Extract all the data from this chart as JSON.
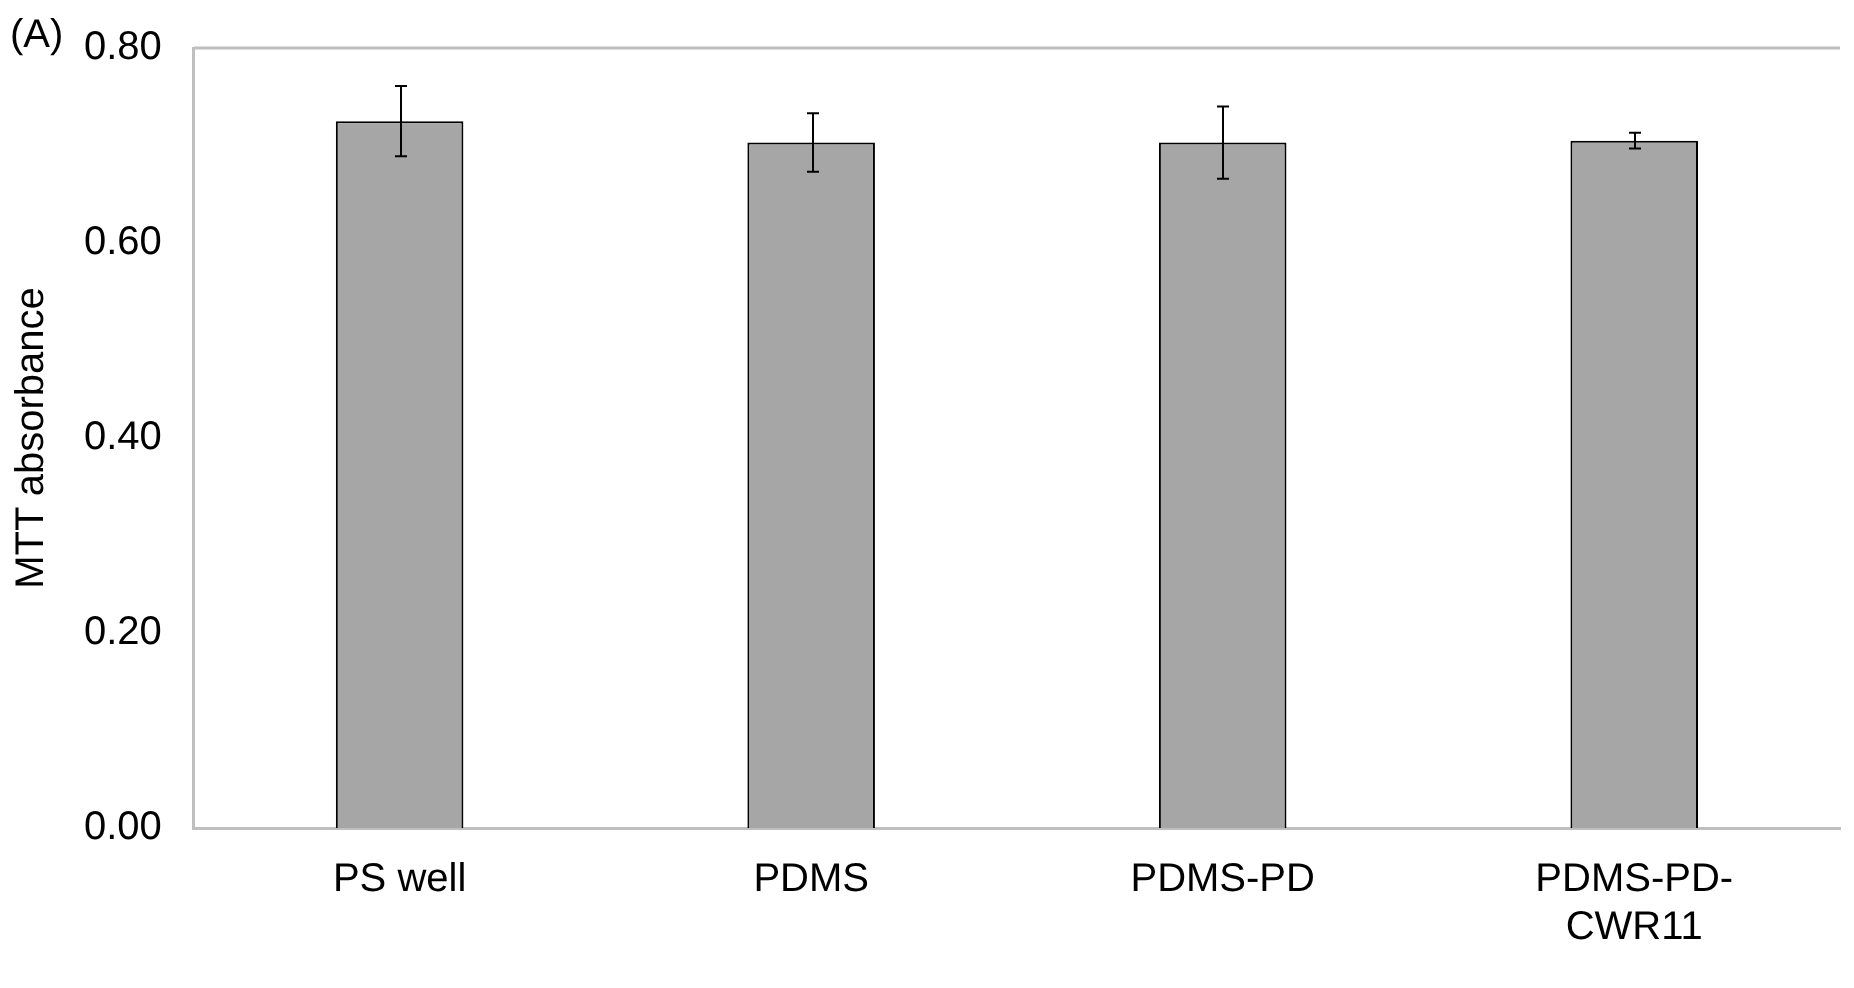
{
  "chart_data": {
    "type": "bar",
    "ylabel": "MTT absorbance",
    "annotations": [
      "(A)"
    ],
    "categories": [
      "PS well",
      "PDMS",
      "PDMS-PD",
      "PDMS-PD-CWR11"
    ],
    "values": [
      0.725,
      0.703,
      0.703,
      0.705
    ],
    "errors": [
      0.036,
      0.03,
      0.037,
      0.008
    ],
    "color": "#a6a6a6",
    "ylim": [
      0,
      0.8
    ],
    "yticks": [
      {
        "value": 0,
        "label": "0.00"
      },
      {
        "value": 0.2,
        "label": "0.20"
      },
      {
        "value": 0.4,
        "label": "0.40"
      },
      {
        "value": 0.6,
        "label": "0.60"
      },
      {
        "value": 0.8,
        "label": "0.80"
      }
    ],
    "grid": false,
    "legend": false
  }
}
